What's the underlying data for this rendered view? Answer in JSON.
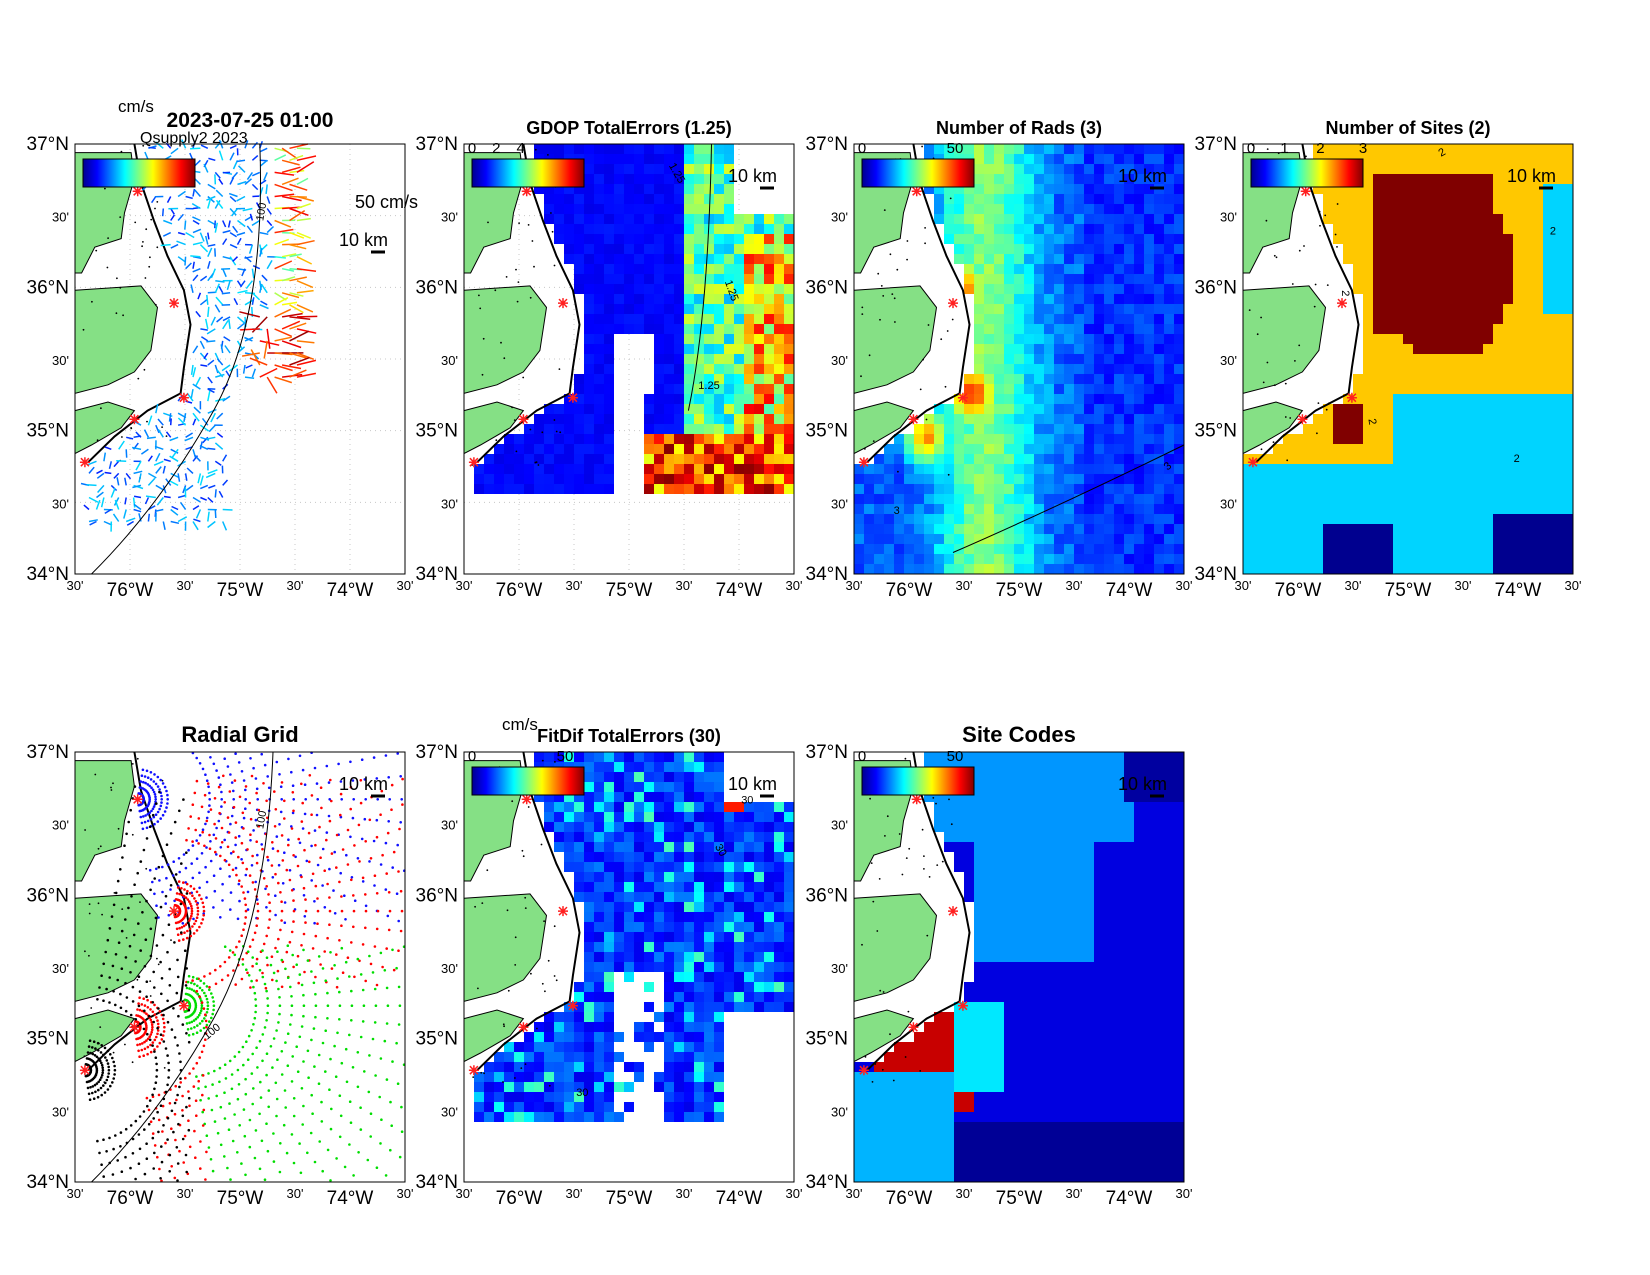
{
  "figure": {
    "timestamp": "2023-07-25 01:00",
    "overlap_text": "Qsupply2 2023",
    "lon_ticks": [
      "30'",
      "76°W",
      "30'",
      "75°W",
      "30'",
      "74°W",
      "30'"
    ],
    "lat_ticks": [
      "37°N",
      "30'",
      "36°N",
      "30'",
      "35°N",
      "30'",
      "34°N"
    ],
    "scale_label": "10 km",
    "colors": {
      "land": "#85e085",
      "ocean_white": "#ffffff",
      "grid_dots": "#c8c8c8",
      "site_marker": "#ff2020",
      "contour": "#000000"
    }
  },
  "panels": [
    {
      "id": "currents",
      "title": "",
      "unit_label": "cm/s",
      "colorbar_ticks": [],
      "speed_ref_label": "50 cm/s",
      "contour_labels": [
        "100"
      ]
    },
    {
      "id": "gdop",
      "title": "GDOP TotalErrors (1.25)",
      "colorbar_ticks": [
        "0",
        "2",
        "4"
      ],
      "contour_labels": [
        "1.25",
        "1.25",
        "1.25"
      ]
    },
    {
      "id": "rads",
      "title": "Number of Rads (3)",
      "colorbar_ticks": [
        "0",
        "50"
      ],
      "contour_labels": [
        "3",
        "3"
      ]
    },
    {
      "id": "sites",
      "title": "Number of Sites (2)",
      "colorbar_ticks": [
        "0",
        "1",
        "2",
        "3"
      ],
      "contour_labels": [
        "2",
        "2",
        "2",
        "2",
        "2"
      ]
    },
    {
      "id": "radial",
      "title": "Radial Grid",
      "contour_labels": [
        "100",
        "100"
      ],
      "site_colors": [
        "#1010ff",
        "#ff0000",
        "#00dd00",
        "#ff0000",
        "#000000"
      ]
    },
    {
      "id": "fitdif",
      "title": "FitDif TotalErrors (30)",
      "unit_label": "cm/s",
      "colorbar_ticks": [
        "0",
        "50"
      ],
      "contour_labels": [
        "30",
        "30",
        "30"
      ]
    },
    {
      "id": "codes",
      "title": "Site Codes",
      "colorbar_ticks": [
        "0",
        "50"
      ],
      "contour_labels": []
    }
  ]
}
